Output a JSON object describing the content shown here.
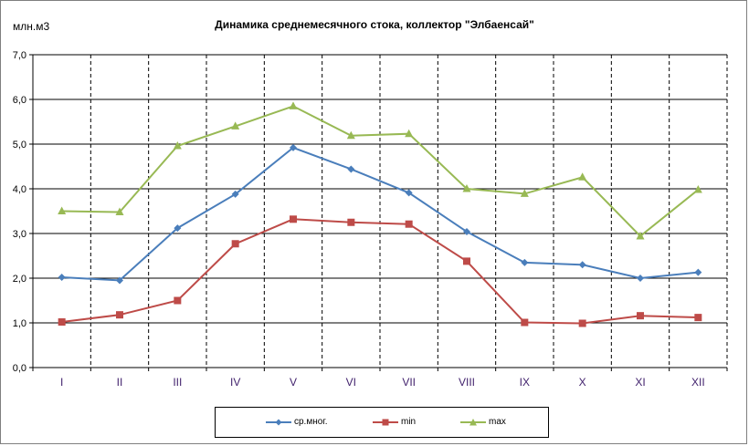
{
  "chart_data": {
    "type": "line",
    "title": "Динамика среднемесячного стока, коллектор \"Элбаенсай\"",
    "ylabel": "млн.м3",
    "ylim": [
      0,
      7
    ],
    "yticks": [
      "0,0",
      "1,0",
      "2,0",
      "3,0",
      "4,0",
      "5,0",
      "6,0",
      "7,0"
    ],
    "categories": [
      "I",
      "II",
      "III",
      "IV",
      "V",
      "VI",
      "VII",
      "VIII",
      "IX",
      "X",
      "XI",
      "XII"
    ],
    "grid": true,
    "legend_position": "bottom",
    "series": [
      {
        "name": "ср.мног.",
        "color": "#4a7ebb",
        "marker": "diamond",
        "values": [
          2.02,
          1.95,
          3.12,
          3.88,
          4.92,
          4.44,
          3.91,
          3.04,
          2.35,
          2.3,
          2.0,
          2.13
        ]
      },
      {
        "name": "min",
        "color": "#be4b48",
        "marker": "square",
        "values": [
          1.02,
          1.18,
          1.5,
          2.77,
          3.32,
          3.25,
          3.21,
          2.38,
          1.01,
          0.99,
          1.16,
          1.12
        ]
      },
      {
        "name": "max",
        "color": "#98b954",
        "marker": "triangle",
        "values": [
          3.5,
          3.48,
          4.96,
          5.4,
          5.85,
          5.19,
          5.23,
          4.0,
          3.89,
          4.26,
          2.94,
          3.98
        ]
      }
    ]
  }
}
